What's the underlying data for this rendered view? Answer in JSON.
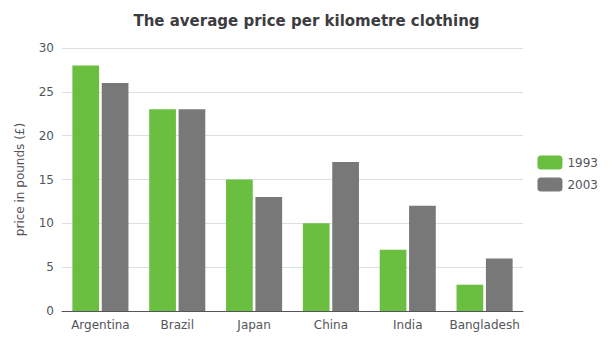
{
  "chart_data": {
    "type": "bar",
    "title": "The average price per kilometre clothing",
    "ylabel": "price in pounds (£)",
    "categories": [
      "Argentina",
      "Brazil",
      "Japan",
      "China",
      "India",
      "Bangladesh"
    ],
    "series": [
      {
        "name": "1993",
        "color": "#6abf40",
        "values": [
          28,
          23,
          15,
          10,
          7,
          3
        ]
      },
      {
        "name": "2003",
        "color": "#787878",
        "values": [
          26,
          23,
          13,
          17,
          12,
          6
        ]
      }
    ],
    "ylim": [
      0,
      30
    ],
    "yticks": [
      0,
      5,
      10,
      15,
      20,
      25,
      30
    ],
    "grid": true,
    "legend": "right"
  }
}
